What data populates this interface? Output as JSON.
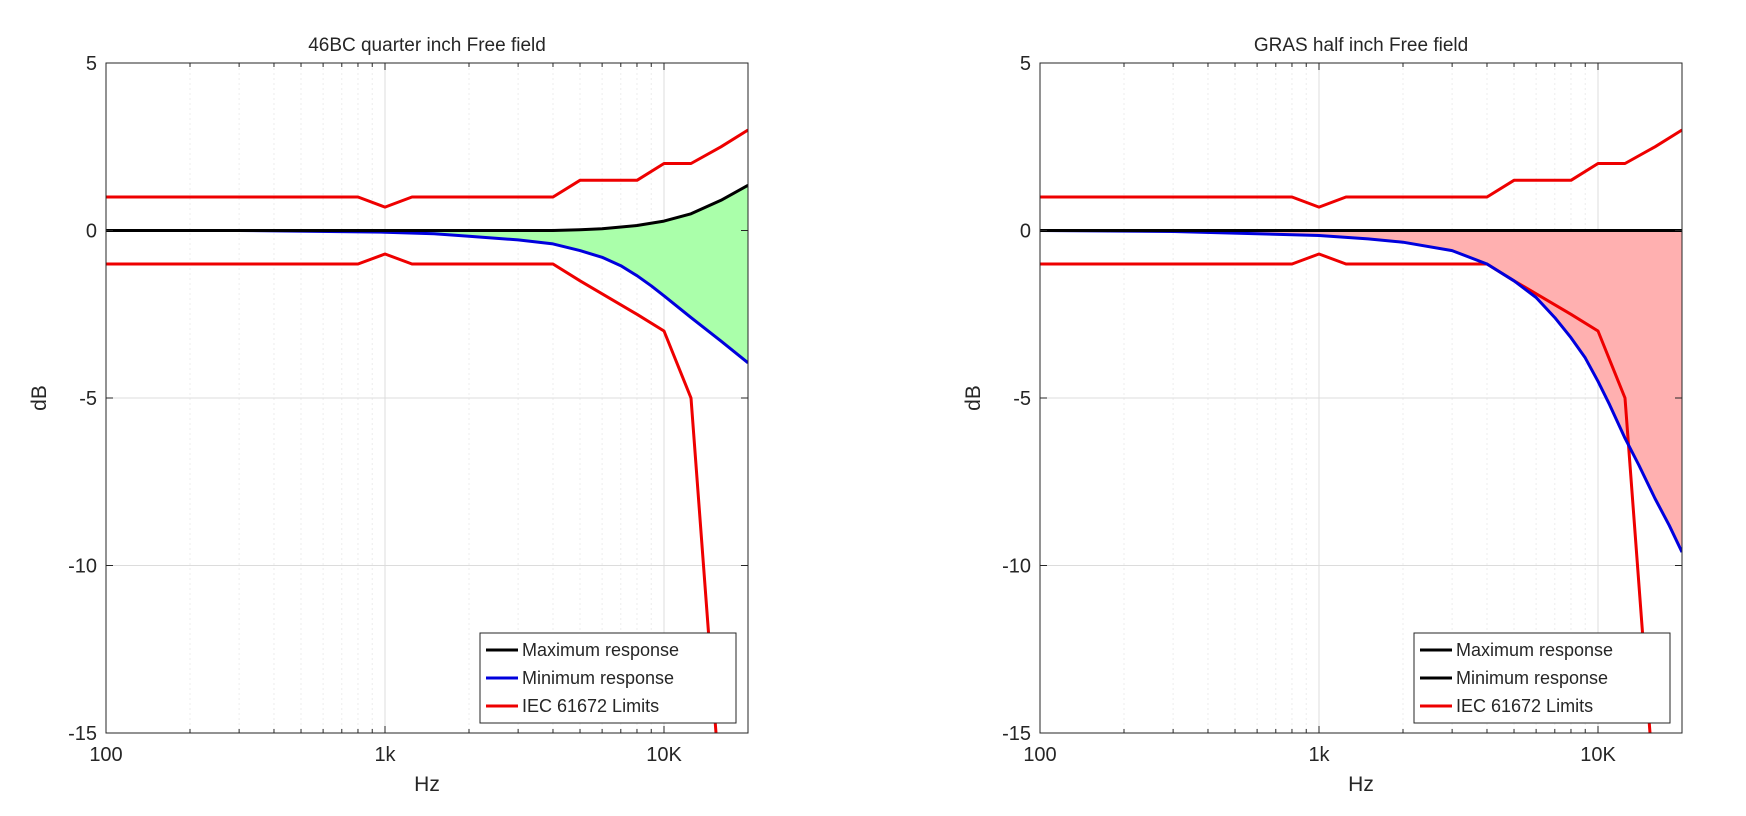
{
  "chart_data": [
    {
      "type": "line",
      "title": "46BC quarter inch Free field",
      "xlabel": "Hz",
      "ylabel": "dB",
      "xscale": "log",
      "xlim": [
        100,
        20000
      ],
      "ylim": [
        -15,
        5
      ],
      "xticks": [
        {
          "value": 100,
          "label": "100"
        },
        {
          "value": 1000,
          "label": "1k"
        },
        {
          "value": 10000,
          "label": "10K"
        }
      ],
      "yticks": [
        {
          "value": 5,
          "label": "5"
        },
        {
          "value": 0,
          "label": "0"
        },
        {
          "value": -5,
          "label": "-5"
        },
        {
          "value": -10,
          "label": "-10"
        },
        {
          "value": -15,
          "label": "-15"
        }
      ],
      "grid": true,
      "legend_position": "bottom-right",
      "fill": {
        "between": [
          "Maximum response",
          "Minimum response"
        ],
        "color": "#aaffaa"
      },
      "series": [
        {
          "name": "Maximum response",
          "color": "#000000",
          "x": [
            100,
            300,
            1000,
            2000,
            3000,
            4000,
            5000,
            6000,
            8000,
            10000,
            12500,
            16000,
            20000
          ],
          "y": [
            0,
            0,
            0,
            0,
            0,
            0,
            0.02,
            0.05,
            0.15,
            0.28,
            0.5,
            0.9,
            1.35
          ]
        },
        {
          "name": "Minimum response",
          "color": "#0000dd",
          "x": [
            100,
            300,
            1000,
            1500,
            2000,
            3000,
            4000,
            5000,
            6000,
            7000,
            8000,
            9000,
            10000,
            12500,
            16000,
            20000
          ],
          "y": [
            0,
            0,
            -0.05,
            -0.1,
            -0.17,
            -0.28,
            -0.4,
            -0.6,
            -0.8,
            -1.05,
            -1.35,
            -1.65,
            -1.95,
            -2.6,
            -3.3,
            -3.95
          ]
        },
        {
          "name": "IEC 61672 Limits",
          "color": "#ee0000",
          "x": [
            100,
            800,
            1000,
            1250,
            4000,
            5000,
            8000,
            10000,
            12500,
            16000,
            20000
          ],
          "y": [
            1,
            1,
            0.7,
            1,
            1,
            1.5,
            1.5,
            2,
            2,
            2.5,
            3
          ]
        },
        {
          "name": "",
          "color": "#ee0000",
          "x": [
            100,
            800,
            1000,
            1250,
            4000,
            5000,
            8000,
            10000,
            12500,
            16000
          ],
          "y": [
            -1,
            -1,
            -0.7,
            -1,
            -1,
            -1.5,
            -2.5,
            -3,
            -5,
            -17
          ]
        }
      ]
    },
    {
      "type": "line",
      "title": "GRAS half inch Free field",
      "xlabel": "Hz",
      "ylabel": "dB",
      "xscale": "log",
      "xlim": [
        100,
        20000
      ],
      "ylim": [
        -15,
        5
      ],
      "xticks": [
        {
          "value": 100,
          "label": "100"
        },
        {
          "value": 1000,
          "label": "1k"
        },
        {
          "value": 10000,
          "label": "10K"
        }
      ],
      "yticks": [
        {
          "value": 5,
          "label": "5"
        },
        {
          "value": 0,
          "label": "0"
        },
        {
          "value": -5,
          "label": "-5"
        },
        {
          "value": -10,
          "label": "-10"
        },
        {
          "value": -15,
          "label": "-15"
        }
      ],
      "grid": true,
      "legend_position": "bottom-right",
      "fill": {
        "between": [
          "Maximum response",
          "Minimum response"
        ],
        "color": "#ffb0b0"
      },
      "series": [
        {
          "name": "Maximum response",
          "color": "#000000",
          "x": [
            100,
            20000
          ],
          "y": [
            0,
            0
          ]
        },
        {
          "name": "Minimum response",
          "color": "#0000dd",
          "legend_color": "#000000",
          "x": [
            100,
            300,
            1000,
            1500,
            2000,
            3000,
            4000,
            5000,
            6000,
            7000,
            8000,
            9000,
            10000,
            11000,
            12500,
            14000,
            16000,
            18000,
            20000
          ],
          "y": [
            0,
            -0.03,
            -0.15,
            -0.25,
            -0.35,
            -0.6,
            -1.0,
            -1.5,
            -2.0,
            -2.6,
            -3.2,
            -3.8,
            -4.5,
            -5.2,
            -6.2,
            -7.0,
            -8.0,
            -8.8,
            -9.6
          ]
        },
        {
          "name": "IEC 61672 Limits",
          "color": "#ee0000",
          "x": [
            100,
            800,
            1000,
            1250,
            4000,
            5000,
            8000,
            10000,
            12500,
            16000,
            20000
          ],
          "y": [
            1,
            1,
            0.7,
            1,
            1,
            1.5,
            1.5,
            2,
            2,
            2.5,
            3
          ]
        },
        {
          "name": "",
          "color": "#ee0000",
          "x": [
            100,
            800,
            1000,
            1250,
            4000,
            5000,
            8000,
            10000,
            12500,
            16000
          ],
          "y": [
            -1,
            -1,
            -0.7,
            -1,
            -1,
            -1.5,
            -2.5,
            -3,
            -5,
            -17
          ]
        }
      ]
    }
  ]
}
